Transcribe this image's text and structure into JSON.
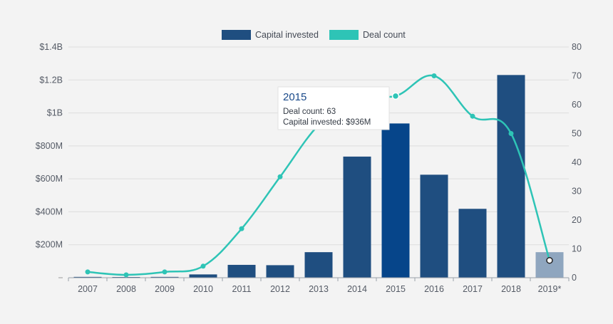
{
  "chart_data": {
    "type": "bar+line",
    "categories": [
      "2007",
      "2008",
      "2009",
      "2010",
      "2011",
      "2012",
      "2013",
      "2014",
      "2015",
      "2016",
      "2017",
      "2018",
      "2019*"
    ],
    "series": [
      {
        "name": "Capital invested",
        "type": "bar",
        "axis": "left",
        "unit": "USD",
        "values": [
          5000000,
          3000000,
          5000000,
          20000000,
          78000000,
          76000000,
          155000000,
          735000000,
          936000000,
          625000000,
          418000000,
          1230000000,
          155000000
        ]
      },
      {
        "name": "Deal count",
        "type": "line",
        "axis": "right",
        "values": [
          2,
          1,
          2,
          4,
          17,
          35,
          53,
          63,
          63,
          70,
          56,
          50,
          6
        ]
      }
    ],
    "y_left": {
      "min": 0,
      "max": 1400000000,
      "ticks": [
        "",
        "$200M",
        "$400M",
        "$600M",
        "$800M",
        "$1B",
        "$1.2B",
        "$1.4B"
      ]
    },
    "y_right": {
      "min": 0,
      "max": 80,
      "ticks": [
        "0",
        "10",
        "20",
        "30",
        "40",
        "50",
        "60",
        "70",
        "80"
      ]
    },
    "legend_position": "top-center",
    "grid": true,
    "highlighted_category": "2015",
    "partial_category": "2019*",
    "colors": {
      "bar": "#1f4e80",
      "bar_highlight": "#06458a",
      "bar_partial": "#8fa6bf",
      "line": "#2ec4b6",
      "grid": "#dddddd"
    },
    "tooltip": {
      "title": "2015",
      "lines": [
        "Deal count: 63",
        "Capital invested: $936M"
      ]
    }
  }
}
